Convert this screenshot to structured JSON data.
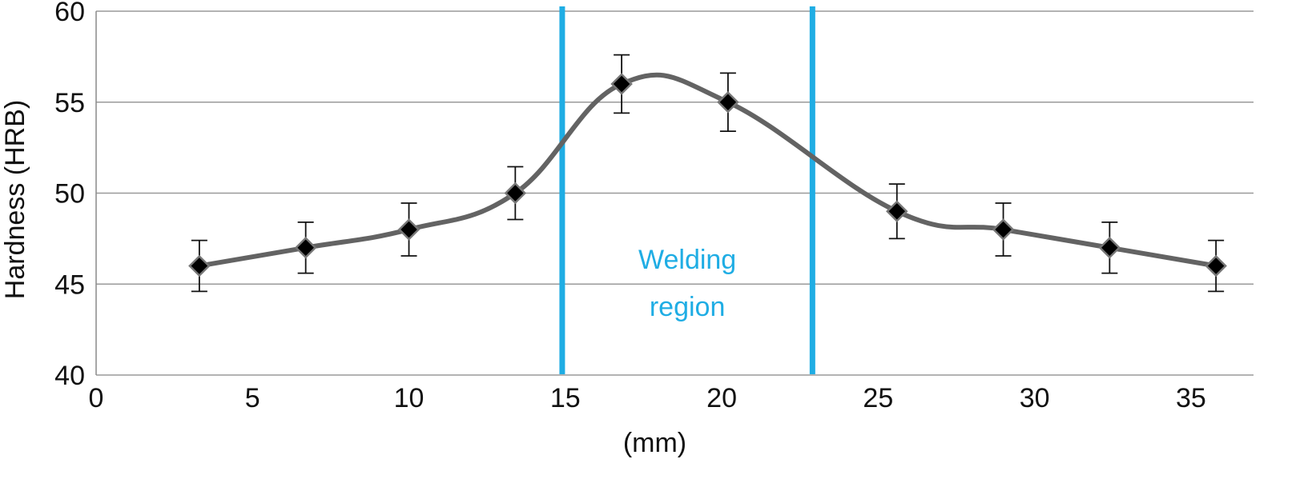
{
  "chart_data": {
    "type": "line",
    "title": "",
    "xlabel": "(mm)",
    "ylabel": "Hardness (HRB)",
    "xlim": [
      0,
      37
    ],
    "ylim": [
      40,
      60
    ],
    "x_ticks": [
      0,
      5,
      10,
      15,
      20,
      25,
      30,
      35
    ],
    "y_ticks": [
      40,
      45,
      50,
      55,
      60
    ],
    "grid": "horizontal",
    "legend": "none",
    "series": [
      {
        "x": [
          3.3,
          6.7,
          10.0,
          13.4,
          16.8,
          20.2,
          25.6,
          29.0,
          32.4,
          35.8
        ],
        "y": [
          46,
          47,
          48,
          50,
          56,
          55,
          49,
          48,
          47,
          46
        ],
        "error": [
          1.4,
          1.4,
          1.45,
          1.45,
          1.6,
          1.6,
          1.5,
          1.45,
          1.4,
          1.4
        ],
        "line_color": "#636363",
        "marker": "diamond",
        "marker_color": "#000000"
      }
    ],
    "annotations": {
      "region_lines_x": [
        14.9,
        22.9
      ],
      "region_color": "#1fade4",
      "region_label_line1": "Welding",
      "region_label_line2": "region"
    }
  }
}
